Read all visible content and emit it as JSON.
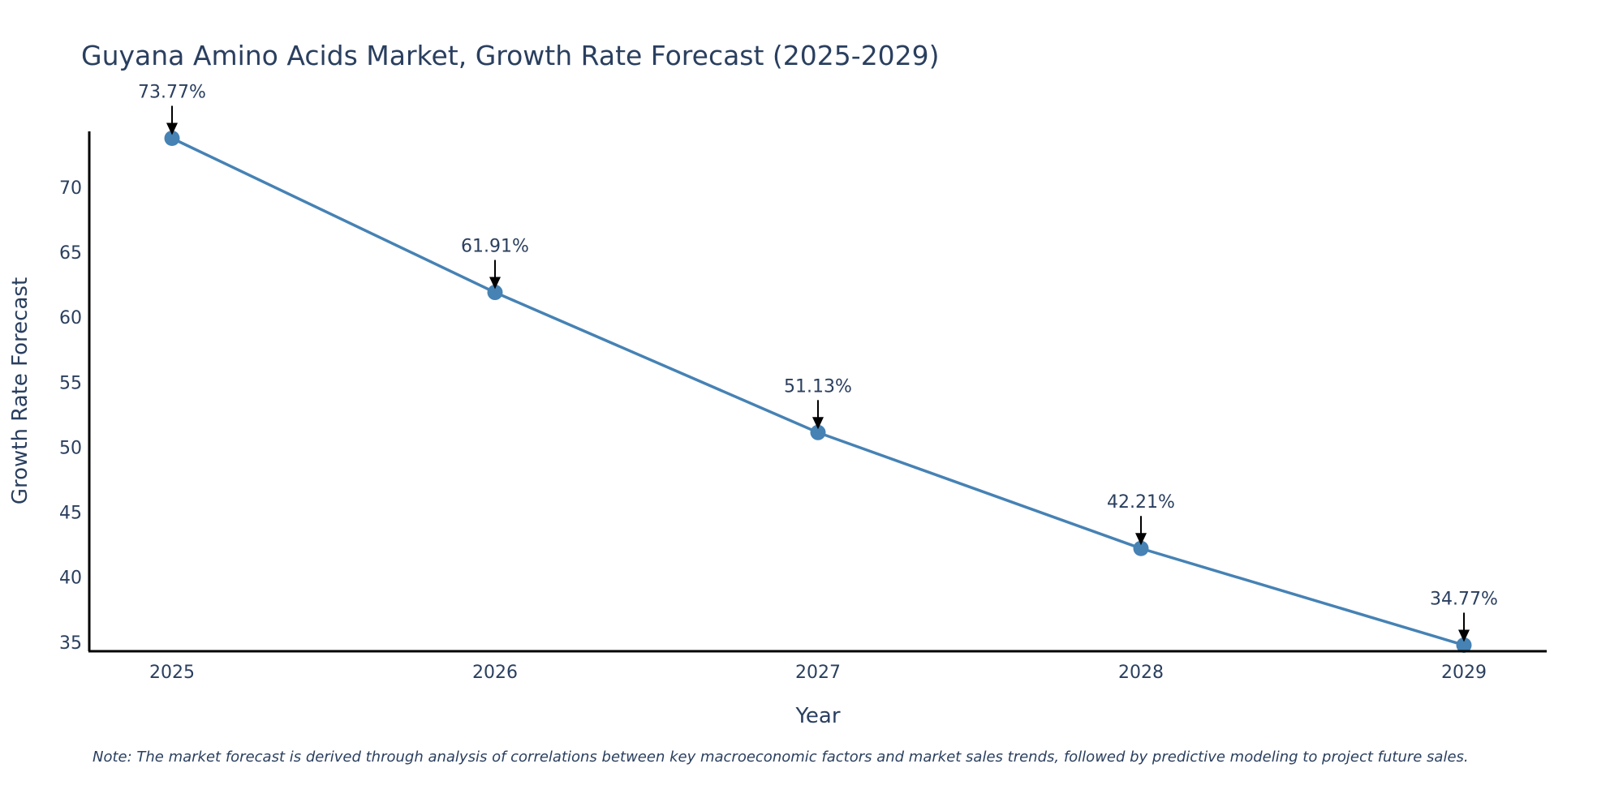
{
  "chart_data": {
    "type": "line",
    "title": "Guyana Amino Acids Market, Growth Rate Forecast (2025-2029)",
    "xlabel": "Year",
    "ylabel": "Growth Rate Forecast",
    "categories": [
      "2025",
      "2026",
      "2027",
      "2028",
      "2029"
    ],
    "series": [
      {
        "name": "Growth Rate Forecast",
        "values": [
          73.77,
          61.91,
          51.13,
          42.21,
          34.77
        ],
        "color": "#4682b4"
      }
    ],
    "data_labels": [
      "73.77%",
      "61.91%",
      "51.13%",
      "42.21%",
      "34.77%"
    ],
    "yticks": [
      35,
      40,
      45,
      50,
      55,
      60,
      65,
      70
    ],
    "ytick_labels": [
      "35",
      "40",
      "45",
      "50",
      "55",
      "60",
      "65",
      "70"
    ],
    "ylim": [
      34.3,
      74.3
    ],
    "grid": false,
    "note": "Note: The market forecast is derived through analysis of correlations between key macroeconomic factors and market sales trends, followed by predictive modeling to project future sales."
  },
  "colors": {
    "line": "#4682b4",
    "marker": "#4682b4",
    "axis": "#000000",
    "text": "#2a3f5f",
    "arrow": "#000000"
  }
}
